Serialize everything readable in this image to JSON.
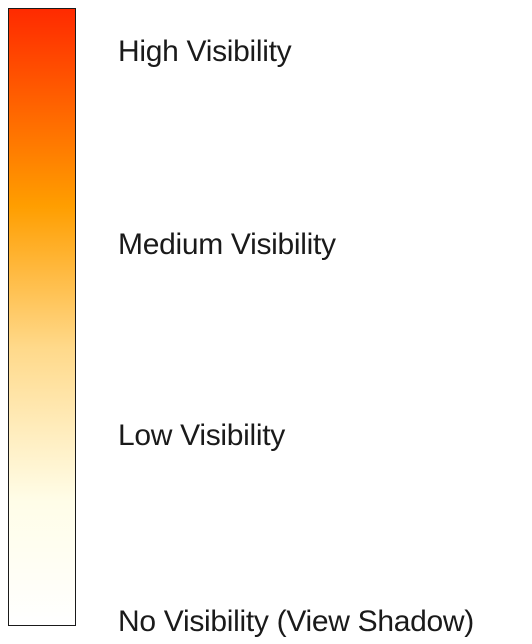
{
  "legend": {
    "gradient": {
      "colors": [
        "#ff2a00",
        "#ff9e00",
        "#ffd98a",
        "#fffde8",
        "#ffffff"
      ]
    },
    "levels": [
      {
        "label": "High Visibility"
      },
      {
        "label": "Medium Visibility"
      },
      {
        "label": "Low Visibility"
      },
      {
        "label": "No Visibility (View Shadow)"
      }
    ]
  }
}
